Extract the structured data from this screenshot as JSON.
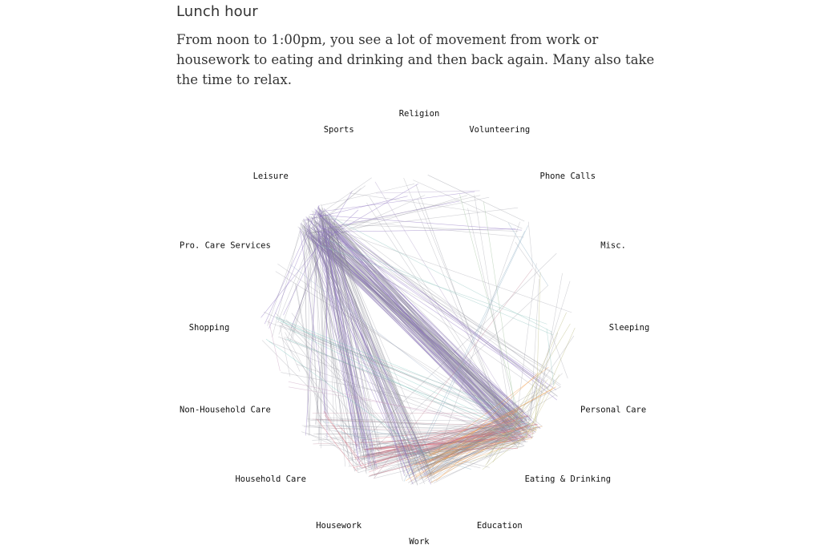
{
  "section": {
    "title": "Lunch hour",
    "description": "From noon to 1:00pm, you see a lot of movement from work or housework to eating and drinking and then back again. Many also take the time to relax."
  },
  "chart_data": {
    "type": "chord-network",
    "nodes": [
      {
        "name": "Religion",
        "color": "#9ea1a8"
      },
      {
        "name": "Volunteering",
        "color": "#9fbf9a"
      },
      {
        "name": "Phone Calls",
        "color": "#8fb0c4"
      },
      {
        "name": "Misc.",
        "color": "#c48fa0"
      },
      {
        "name": "Sleeping",
        "color": "#8fc4c0"
      },
      {
        "name": "Personal Care",
        "color": "#c9c28a"
      },
      {
        "name": "Eating & Drinking",
        "color": "#b8b87a"
      },
      {
        "name": "Education",
        "color": "#9ac0d0"
      },
      {
        "name": "Work",
        "color": "#f0a050"
      },
      {
        "name": "Housework",
        "color": "#d66a7a"
      },
      {
        "name": "Household Care",
        "color": "#c99aa8"
      },
      {
        "name": "Non-Household Care",
        "color": "#c8a0c0"
      },
      {
        "name": "Shopping",
        "color": "#7ec8c0"
      },
      {
        "name": "Pro. Care Services",
        "color": "#a8b8d0"
      },
      {
        "name": "Leisure",
        "color": "#8a6fc0"
      },
      {
        "name": "Sports",
        "color": "#b0a0c8"
      }
    ],
    "flows": [
      {
        "source": "Leisure",
        "target": "Eating & Drinking",
        "weight": 120
      },
      {
        "source": "Work",
        "target": "Eating & Drinking",
        "weight": 90
      },
      {
        "source": "Housework",
        "target": "Eating & Drinking",
        "weight": 70
      },
      {
        "source": "Leisure",
        "target": "Work",
        "weight": 60
      },
      {
        "source": "Leisure",
        "target": "Housework",
        "weight": 55
      },
      {
        "source": "Leisure",
        "target": "Household Care",
        "weight": 22
      },
      {
        "source": "Leisure",
        "target": "Shopping",
        "weight": 14
      },
      {
        "source": "Leisure",
        "target": "Personal Care",
        "weight": 16
      },
      {
        "source": "Shopping",
        "target": "Eating & Drinking",
        "weight": 14
      },
      {
        "source": "Household Care",
        "target": "Eating & Drinking",
        "weight": 18
      },
      {
        "source": "Eating & Drinking",
        "target": "Education",
        "weight": 12
      },
      {
        "source": "Personal Care",
        "target": "Eating & Drinking",
        "weight": 10
      },
      {
        "source": "Work",
        "target": "Personal Care",
        "weight": 8
      },
      {
        "source": "Housework",
        "target": "Household Care",
        "weight": 10
      },
      {
        "source": "Leisure",
        "target": "Sports",
        "weight": 6
      },
      {
        "source": "Leisure",
        "target": "Volunteering",
        "weight": 5
      },
      {
        "source": "Leisure",
        "target": "Religion",
        "weight": 4
      },
      {
        "source": "Leisure",
        "target": "Phone Calls",
        "weight": 5
      },
      {
        "source": "Eating & Drinking",
        "target": "Misc.",
        "weight": 5
      },
      {
        "source": "Eating & Drinking",
        "target": "Sleeping",
        "weight": 4
      },
      {
        "source": "Volunteering",
        "target": "Eating & Drinking",
        "weight": 4
      },
      {
        "source": "Phone Calls",
        "target": "Work",
        "weight": 3
      },
      {
        "source": "Religion",
        "target": "Eating & Drinking",
        "weight": 3
      },
      {
        "source": "Sports",
        "target": "Eating & Drinking",
        "weight": 3
      },
      {
        "source": "Non-Household Care",
        "target": "Eating & Drinking",
        "weight": 4
      },
      {
        "source": "Pro. Care Services",
        "target": "Eating & Drinking",
        "weight": 3
      },
      {
        "source": "Shopping",
        "target": "Work",
        "weight": 4
      },
      {
        "source": "Housework",
        "target": "Shopping",
        "weight": 4
      },
      {
        "source": "Work",
        "target": "Education",
        "weight": 4
      },
      {
        "source": "Misc.",
        "target": "Housework",
        "weight": 3
      },
      {
        "source": "Sleeping",
        "target": "Personal Care",
        "weight": 3
      },
      {
        "source": "Phone Calls",
        "target": "Misc.",
        "weight": 3
      },
      {
        "source": "Sports",
        "target": "Volunteering",
        "weight": 2
      },
      {
        "source": "Religion",
        "target": "Phone Calls",
        "weight": 2
      },
      {
        "source": "Non-Household Care",
        "target": "Shopping",
        "weight": 3
      },
      {
        "source": "Pro. Care Services",
        "target": "Household Care",
        "weight": 2
      },
      {
        "source": "Sleeping",
        "target": "Leisure",
        "weight": 4
      },
      {
        "source": "Education",
        "target": "Household Care",
        "weight": 3
      }
    ]
  }
}
